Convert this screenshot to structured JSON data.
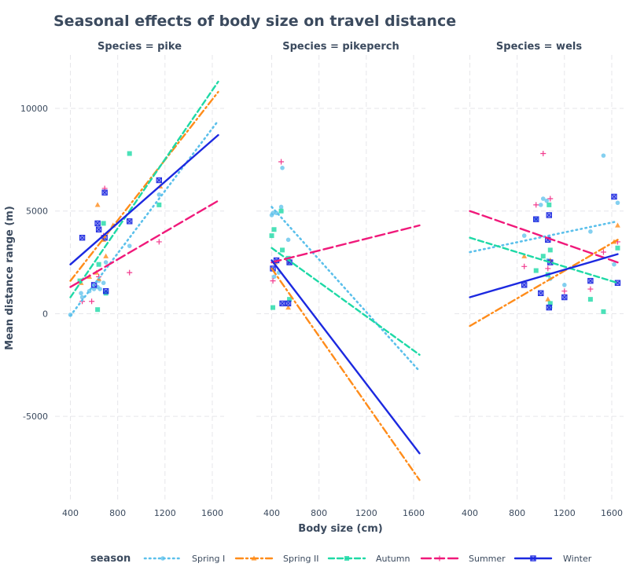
{
  "chart_data": {
    "type": "scatter",
    "title": "Seasonal effects of body size on travel distance",
    "xlabel": "Body size (cm)",
    "ylabel": "Mean distance range (m)",
    "xlim": [
      270,
      1700
    ],
    "ylim": [
      -9200,
      12600
    ],
    "xticks": [
      "400",
      "800",
      "1200",
      "1600"
    ],
    "yticks": [
      "10000",
      "5000",
      "0",
      "-5000"
    ],
    "legend_title": "season",
    "legend_position": "bottom",
    "series": [
      {
        "name": "Spring I",
        "color": "#5bc0eb",
        "dash": "dotted",
        "marker": "circle"
      },
      {
        "name": "Spring II",
        "color": "#ff8c1a",
        "dash": "dashdot",
        "marker": "triangle"
      },
      {
        "name": "Autumn",
        "color": "#1ed9a6",
        "dash": "dashed",
        "marker": "square"
      },
      {
        "name": "Summer",
        "color": "#f0197a",
        "dash": "longdash",
        "marker": "plus"
      },
      {
        "name": "Winter",
        "color": "#1c29e0",
        "dash": "solid",
        "marker": "squarex"
      }
    ],
    "panels": [
      {
        "title": "Species = pike",
        "lines": [
          {
            "series": "Spring I",
            "x": [
              400,
              1650
            ],
            "y": [
              -100,
              9400
            ]
          },
          {
            "series": "Spring II",
            "x": [
              400,
              1650
            ],
            "y": [
              1600,
              10800
            ]
          },
          {
            "series": "Autumn",
            "x": [
              400,
              1650
            ],
            "y": [
              800,
              11300
            ]
          },
          {
            "series": "Summer",
            "x": [
              400,
              1650
            ],
            "y": [
              1300,
              5500
            ]
          },
          {
            "series": "Winter",
            "x": [
              400,
              1650
            ],
            "y": [
              2400,
              8700
            ]
          }
        ],
        "points": [
          {
            "series": "Spring I",
            "x": [
              400,
              490,
              500,
              560,
              600,
              630,
              640,
              650,
              680,
              700,
              900,
              1150
            ],
            "y": [
              -50,
              1000,
              800,
              1100,
              1200,
              1300,
              1600,
              1200,
              1500,
              2500,
              3300,
              5800
            ]
          },
          {
            "series": "Spring II",
            "x": [
              490,
              560,
              620,
              630,
              640,
              680,
              700,
              760,
              1160
            ],
            "y": [
              1500,
              1800,
              2000,
              5300,
              1700,
              3600,
              2800,
              4300,
              6200
            ]
          },
          {
            "series": "Autumn",
            "x": [
              480,
              630,
              640,
              680,
              700,
              900,
              1150
            ],
            "y": [
              1600,
              200,
              2400,
              4400,
              1000,
              7800,
              5300
            ]
          },
          {
            "series": "Summer",
            "x": [
              500,
              580,
              640,
              680,
              690,
              900,
              1150
            ],
            "y": [
              600,
              600,
              1800,
              3800,
              6100,
              2000,
              3500
            ]
          },
          {
            "series": "Winter",
            "x": [
              500,
              600,
              630,
              640,
              690,
              690,
              700,
              900,
              1150
            ],
            "y": [
              3700,
              1400,
              4400,
              4100,
              3700,
              5900,
              1100,
              4500,
              6500
            ]
          }
        ]
      },
      {
        "title": "Species = pikeperch",
        "lines": [
          {
            "series": "Spring I",
            "x": [
              400,
              1650
            ],
            "y": [
              5200,
              -2800
            ]
          },
          {
            "series": "Spring II",
            "x": [
              400,
              1650
            ],
            "y": [
              2200,
              -8100
            ]
          },
          {
            "series": "Autumn",
            "x": [
              400,
              1650
            ],
            "y": [
              3200,
              -2000
            ]
          },
          {
            "series": "Summer",
            "x": [
              400,
              1650
            ],
            "y": [
              2500,
              4300
            ]
          },
          {
            "series": "Winter",
            "x": [
              400,
              1650
            ],
            "y": [
              2600,
              -6800
            ]
          }
        ],
        "points": [
          {
            "series": "Spring I",
            "x": [
              400,
              410,
              420,
              440,
              460,
              480,
              490,
              540,
              550
            ],
            "y": [
              4800,
              4900,
              1800,
              4900,
              2000,
              5200,
              7100,
              3600,
              2500
            ]
          },
          {
            "series": "Spring II",
            "x": [
              430,
              540
            ],
            "y": [
              2500,
              300
            ]
          },
          {
            "series": "Autumn",
            "x": [
              400,
              410,
              420,
              480,
              490,
              540,
              550
            ],
            "y": [
              3800,
              300,
              4100,
              5000,
              3100,
              2700,
              700
            ]
          },
          {
            "series": "Summer",
            "x": [
              410,
              480,
              540
            ],
            "y": [
              1600,
              7400,
              2600
            ]
          },
          {
            "series": "Winter",
            "x": [
              410,
              440,
              490,
              540,
              550
            ],
            "y": [
              2200,
              2600,
              500,
              500,
              2500
            ]
          }
        ]
      },
      {
        "title": "Species = wels",
        "lines": [
          {
            "series": "Spring I",
            "x": [
              400,
              1650
            ],
            "y": [
              3000,
              4500
            ]
          },
          {
            "series": "Spring II",
            "x": [
              400,
              1650
            ],
            "y": [
              -600,
              3600
            ]
          },
          {
            "series": "Autumn",
            "x": [
              400,
              1650
            ],
            "y": [
              3700,
              1500
            ]
          },
          {
            "series": "Summer",
            "x": [
              400,
              1650
            ],
            "y": [
              5000,
              2500
            ]
          },
          {
            "series": "Winter",
            "x": [
              400,
              1650
            ],
            "y": [
              800,
              2900
            ]
          }
        ],
        "points": [
          {
            "series": "Spring I",
            "x": [
              860,
              960,
              1000,
              1020,
              1050,
              1060,
              1080,
              1080,
              1200,
              1420,
              1530,
              1620,
              1650
            ],
            "y": [
              3800,
              4600,
              5300,
              5600,
              5500,
              2600,
              1700,
              300,
              1400,
              4000,
              7700,
              2400,
              5400
            ]
          },
          {
            "series": "Spring II",
            "x": [
              860,
              1060,
              1080,
              1620,
              1650
            ],
            "y": [
              2800,
              700,
              2600,
              3500,
              4300
            ]
          },
          {
            "series": "Autumn",
            "x": [
              960,
              1020,
              1060,
              1070,
              1080,
              1080,
              1420,
              1530,
              1650
            ],
            "y": [
              2100,
              2800,
              1900,
              5300,
              3100,
              500,
              700,
              100,
              3200
            ]
          },
          {
            "series": "Summer",
            "x": [
              860,
              960,
              1020,
              1060,
              1080,
              1200,
              1420,
              1530,
              1650
            ],
            "y": [
              2300,
              5300,
              7800,
              2200,
              5600,
              1100,
              1200,
              3000,
              3500
            ]
          },
          {
            "series": "Winter",
            "x": [
              860,
              960,
              1000,
              1060,
              1070,
              1070,
              1080,
              1200,
              1420,
              1620,
              1650
            ],
            "y": [
              1400,
              4600,
              1000,
              3600,
              4800,
              300,
              2500,
              800,
              1600,
              5700,
              1500
            ]
          }
        ]
      }
    ]
  }
}
